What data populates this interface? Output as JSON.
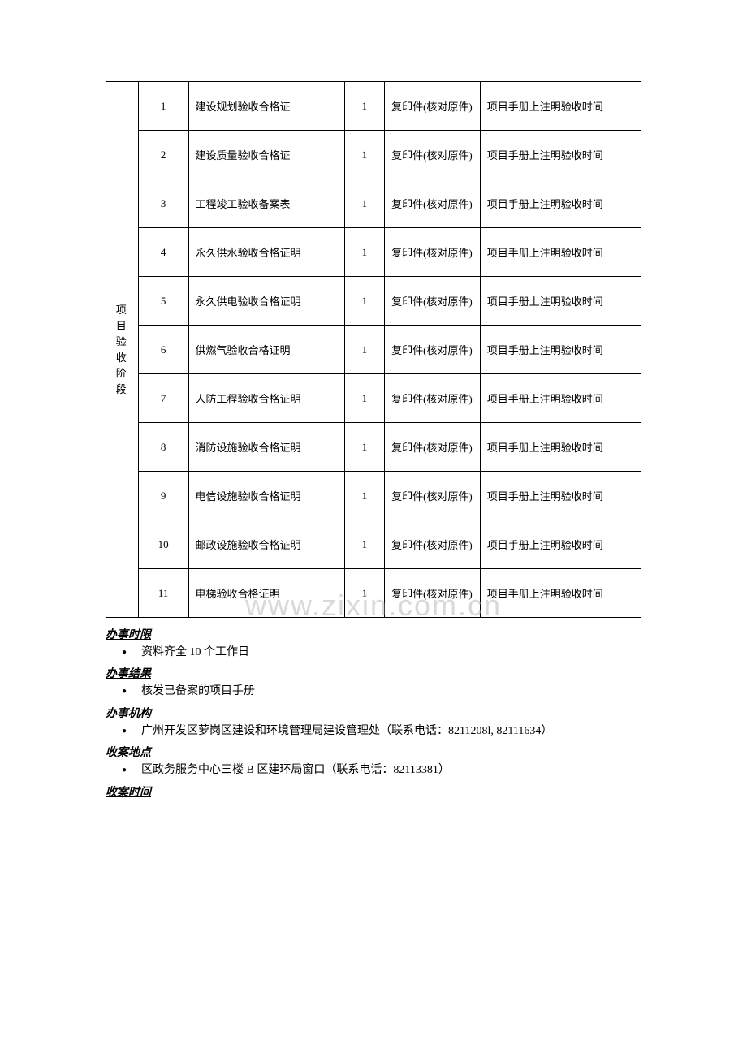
{
  "table": {
    "stage_label": "项目验收阶段",
    "rows": [
      {
        "num": "1",
        "name": "建设规划验收合格证",
        "qty": "1",
        "type": "复印件(核对原件)",
        "note": "项目手册上注明验收时间"
      },
      {
        "num": "2",
        "name": "建设质量验收合格证",
        "qty": "1",
        "type": "复印件(核对原件)",
        "note": "项目手册上注明验收时间"
      },
      {
        "num": "3",
        "name": "工程竣工验收备案表",
        "qty": "1",
        "type": "复印件(核对原件)",
        "note": "项目手册上注明验收时间"
      },
      {
        "num": "4",
        "name": "永久供水验收合格证明",
        "qty": "1",
        "type": "复印件(核对原件)",
        "note": "项目手册上注明验收时间"
      },
      {
        "num": "5",
        "name": "永久供电验收合格证明",
        "qty": "1",
        "type": "复印件(核对原件)",
        "note": "项目手册上注明验收时间"
      },
      {
        "num": "6",
        "name": "供燃气验收合格证明",
        "qty": "1",
        "type": "复印件(核对原件)",
        "note": "项目手册上注明验收时间"
      },
      {
        "num": "7",
        "name": "人防工程验收合格证明",
        "qty": "1",
        "type": "复印件(核对原件)",
        "note": "项目手册上注明验收时间"
      },
      {
        "num": "8",
        "name": "消防设施验收合格证明",
        "qty": "1",
        "type": "复印件(核对原件)",
        "note": "项目手册上注明验收时间"
      },
      {
        "num": "9",
        "name": "电信设施验收合格证明",
        "qty": "1",
        "type": "复印件(核对原件)",
        "note": "项目手册上注明验收时间"
      },
      {
        "num": "10",
        "name": "邮政设施验收合格证明",
        "qty": "1",
        "type": "复印件(核对原件)",
        "note": "项目手册上注明验收时间"
      },
      {
        "num": "11",
        "name": "电梯验收合格证明",
        "qty": "1",
        "type": "复印件(核对原件)",
        "note": "项目手册上注明验收时间"
      }
    ]
  },
  "sections": {
    "deadline": {
      "heading": "办事时限",
      "content": "资料齐全 10 个工作日"
    },
    "result": {
      "heading": "办事结果",
      "content": "核发已备案的项目手册"
    },
    "agency": {
      "heading": "办事机构",
      "content": "广州开发区萝岗区建设和环境管理局建设管理处（联系电话：8211208l, 82111634）"
    },
    "location": {
      "heading": "收案地点",
      "content": "区政务服务中心三楼 B 区建环局窗口（联系电话：82113381）"
    },
    "time": {
      "heading": "收案时间"
    }
  },
  "watermark": "www.zixin.com.cn"
}
